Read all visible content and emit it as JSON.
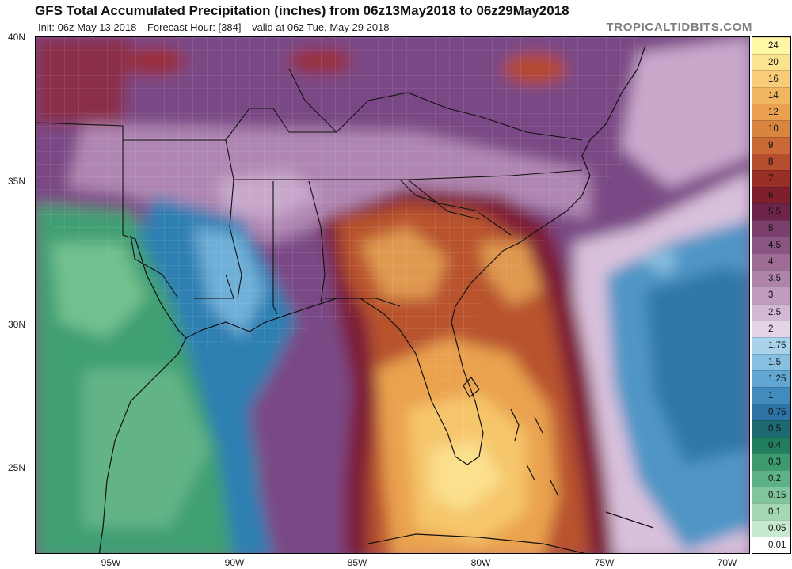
{
  "header": {
    "title": "GFS Total Accumulated Precipitation (inches) from 06z13May2018 to 06z29May2018",
    "init": "Init: 06z May 13 2018",
    "forecast_hour": "Forecast Hour: [384]",
    "valid": "valid at 06z Tue, May 29 2018",
    "brand": "TROPICALTIDBITS.COM"
  },
  "map": {
    "lat_labels": [
      "40N",
      "35N",
      "30N",
      "25N"
    ],
    "lon_labels": [
      "95W",
      "90W",
      "85W",
      "80W",
      "75W",
      "70W"
    ]
  },
  "colorbar": {
    "levels": [
      {
        "label": "24",
        "color": "#fdf7a6"
      },
      {
        "label": "20",
        "color": "#fbe490"
      },
      {
        "label": "16",
        "color": "#f8cc78"
      },
      {
        "label": "14",
        "color": "#f2b663"
      },
      {
        "label": "12",
        "color": "#eaa050"
      },
      {
        "label": "10",
        "color": "#d98540"
      },
      {
        "label": "9",
        "color": "#c96a36"
      },
      {
        "label": "8",
        "color": "#b44e2f"
      },
      {
        "label": "7",
        "color": "#993026"
      },
      {
        "label": "6",
        "color": "#7f1f2e"
      },
      {
        "label": "5.5",
        "color": "#6c2448"
      },
      {
        "label": "5",
        "color": "#7a3f6a"
      },
      {
        "label": "4.5",
        "color": "#8a5580"
      },
      {
        "label": "4",
        "color": "#9c6c95"
      },
      {
        "label": "3.5",
        "color": "#ae84aa"
      },
      {
        "label": "3",
        "color": "#c09dbf"
      },
      {
        "label": "2.5",
        "color": "#d3b8d4"
      },
      {
        "label": "2",
        "color": "#e5d3e7"
      },
      {
        "label": "1.75",
        "color": "#a9d3ea"
      },
      {
        "label": "1.5",
        "color": "#86bfe0"
      },
      {
        "label": "1.25",
        "color": "#62a6d2"
      },
      {
        "label": "1",
        "color": "#418bbd"
      },
      {
        "label": "0.75",
        "color": "#2d73a5"
      },
      {
        "label": "0.5",
        "color": "#1f6a70"
      },
      {
        "label": "0.4",
        "color": "#217d5f"
      },
      {
        "label": "0.3",
        "color": "#3c9a6e"
      },
      {
        "label": "0.2",
        "color": "#5eb186"
      },
      {
        "label": "0.15",
        "color": "#80c59c"
      },
      {
        "label": "0.1",
        "color": "#a4d8b4"
      },
      {
        "label": "0.05",
        "color": "#c6e9cf"
      },
      {
        "label": "0.01",
        "color": "#ffffff"
      }
    ]
  }
}
